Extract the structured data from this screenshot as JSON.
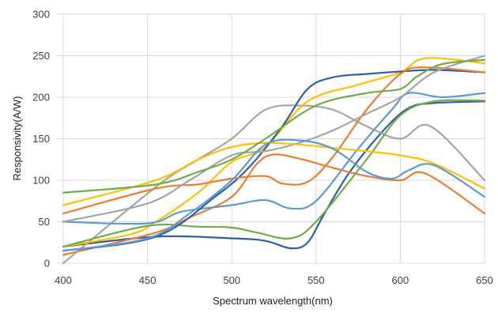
{
  "chart_data": {
    "type": "line",
    "xlabel": "Spectrum wavelength(nm)",
    "ylabel": "Responsivity(A/W)",
    "xlim": [
      400,
      650
    ],
    "ylim": [
      0,
      300
    ],
    "xticks": [
      400,
      450,
      500,
      550,
      600,
      650
    ],
    "yticks": [
      0,
      50,
      100,
      150,
      200,
      250,
      300
    ],
    "grid": "vertical",
    "legend": "none",
    "series": [
      {
        "color": "#2E5EA8",
        "x": [
          400,
          455,
          500,
          520,
          535,
          545,
          555,
          570,
          590,
          605,
          620,
          650
        ],
        "y": [
          20,
          32,
          30,
          27,
          18,
          25,
          60,
          110,
          160,
          187,
          193,
          195
        ]
      },
      {
        "color": "#ED7D31",
        "x": [
          400,
          455,
          475,
          500,
          515,
          525,
          540,
          560,
          580,
          600,
          615,
          650
        ],
        "y": [
          10,
          37,
          55,
          80,
          120,
          131,
          126,
          115,
          105,
          100,
          108,
          60
        ]
      },
      {
        "color": "#A5A5A5",
        "x": [
          400,
          455,
          480,
          500,
          520,
          540,
          560,
          580,
          600,
          618,
          650
        ],
        "y": [
          0,
          92,
          125,
          150,
          185,
          190,
          185,
          165,
          150,
          165,
          100
        ]
      },
      {
        "color": "#FFC000",
        "x": [
          400,
          440,
          455,
          480,
          500,
          520,
          545,
          575,
          600,
          615,
          650
        ],
        "y": [
          20,
          35,
          50,
          85,
          122,
          140,
          195,
          215,
          230,
          247,
          241
        ]
      },
      {
        "color": "#5B9BD5",
        "x": [
          400,
          450,
          470,
          500,
          520,
          535,
          550,
          575,
          595,
          605,
          625,
          650
        ],
        "y": [
          50,
          48,
          62,
          70,
          76,
          66,
          75,
          138,
          185,
          205,
          200,
          205
        ]
      },
      {
        "color": "#70AD47",
        "x": [
          400,
          450,
          480,
          500,
          515,
          535,
          550,
          580,
          600,
          620,
          650
        ],
        "y": [
          20,
          45,
          44,
          43,
          37,
          30,
          50,
          125,
          178,
          195,
          196
        ]
      },
      {
        "color": "#2E5EA8",
        "x": [
          400,
          455,
          490,
          510,
          530,
          545,
          560,
          580,
          600,
          620,
          650
        ],
        "y": [
          15,
          32,
          80,
          115,
          165,
          210,
          224,
          228,
          231,
          233,
          230
        ]
      },
      {
        "color": "#ED7D31",
        "x": [
          400,
          455,
          480,
          500,
          520,
          530,
          545,
          560,
          580,
          600,
          615,
          650
        ],
        "y": [
          60,
          90,
          95,
          102,
          105,
          96,
          98,
          128,
          185,
          228,
          236,
          230
        ]
      },
      {
        "color": "#A5A5A5",
        "x": [
          400,
          450,
          475,
          500,
          520,
          540,
          560,
          580,
          600,
          620,
          650
        ],
        "y": [
          50,
          72,
          100,
          130,
          135,
          145,
          160,
          180,
          200,
          230,
          250
        ]
      },
      {
        "color": "#FFC000",
        "x": [
          400,
          455,
          480,
          500,
          520,
          540,
          560,
          580,
          600,
          620,
          650
        ],
        "y": [
          70,
          100,
          125,
          140,
          145,
          143,
          139,
          135,
          130,
          120,
          90
        ]
      },
      {
        "color": "#5B9BD5",
        "x": [
          400,
          450,
          475,
          500,
          520,
          540,
          560,
          580,
          595,
          605,
          620,
          650
        ],
        "y": [
          15,
          30,
          60,
          100,
          143,
          148,
          138,
          110,
          102,
          112,
          118,
          80
        ]
      },
      {
        "color": "#70AD47",
        "x": [
          400,
          455,
          480,
          500,
          520,
          550,
          580,
          600,
          610,
          625,
          650
        ],
        "y": [
          85,
          95,
          110,
          125,
          150,
          190,
          205,
          210,
          225,
          240,
          245
        ]
      }
    ]
  }
}
